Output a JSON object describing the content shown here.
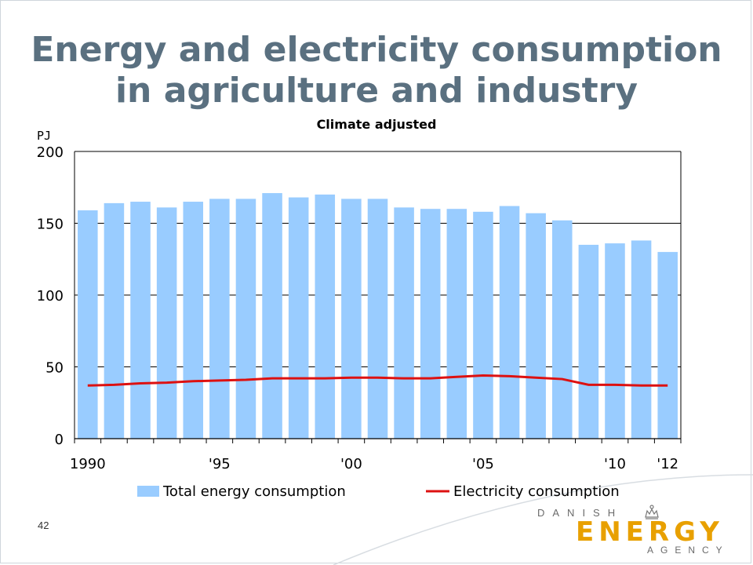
{
  "slide": {
    "title_line1": "Energy and electricity consumption",
    "title_line2": "in agriculture and industry",
    "page_number": "42",
    "logo": {
      "line1": "DANISH",
      "line2": "ENERGY",
      "line3": "AGENCY",
      "accent_color": "#e8a000"
    }
  },
  "chart_data": {
    "type": "bar",
    "subtitle": "Climate adjusted",
    "ylabel": "PJ",
    "ylim": [
      0,
      200
    ],
    "yticks": [
      0,
      50,
      100,
      150,
      200
    ],
    "categories": [
      "1990",
      "1991",
      "1992",
      "1993",
      "1994",
      "1995",
      "1996",
      "1997",
      "1998",
      "1999",
      "2000",
      "2001",
      "2002",
      "2003",
      "2004",
      "2005",
      "2006",
      "2007",
      "2008",
      "2009",
      "2010",
      "2011",
      "2012"
    ],
    "x_tick_labels": [
      "1990",
      "'95",
      "'00",
      "'05",
      "'10",
      "'12"
    ],
    "x_tick_positions": [
      "1990",
      "1995",
      "2000",
      "2005",
      "2010",
      "2012"
    ],
    "grid": true,
    "legend_position": "bottom",
    "series": [
      {
        "name": "Total energy consumption",
        "kind": "bar",
        "color": "#99ccff",
        "values": [
          159,
          164,
          165,
          161,
          165,
          167,
          167,
          171,
          168,
          170,
          167,
          167,
          161,
          160,
          160,
          158,
          162,
          157,
          152,
          135,
          136,
          138,
          130
        ]
      },
      {
        "name": "Electricity consumption",
        "kind": "line",
        "color": "#dd1111",
        "values": [
          37,
          37.5,
          38.5,
          39,
          40,
          40.5,
          41,
          42,
          42,
          42,
          42.5,
          42.5,
          42,
          42,
          43,
          44,
          43.5,
          42.5,
          41.5,
          37.5,
          37.5,
          37,
          37
        ]
      }
    ]
  }
}
